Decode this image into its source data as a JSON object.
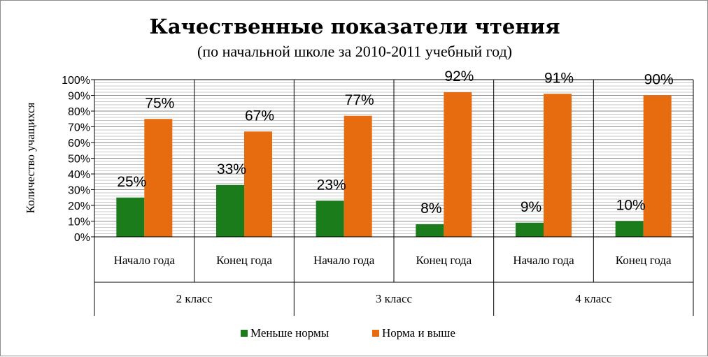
{
  "chart_data": {
    "type": "bar",
    "title": "Качественные показатели чтения",
    "subtitle": "(по начальной школе за 2010-2011 учебный год)",
    "ylabel": "Количество учащихся",
    "ylim": [
      0,
      100
    ],
    "ytick_labels": [
      "0%",
      "10%",
      "20%",
      "30%",
      "40%",
      "50%",
      "60%",
      "70%",
      "80%",
      "90%",
      "100%"
    ],
    "groups": [
      "2 класс",
      "3 класс",
      "4 класс"
    ],
    "categories": [
      "Начало года",
      "Конец года",
      "Начало года",
      "Конец года",
      "Начало года",
      "Конец года"
    ],
    "series": [
      {
        "name": "Меньше нормы",
        "color": "#1b7c1b",
        "values": [
          25,
          33,
          23,
          8,
          9,
          10
        ],
        "labels": [
          "25%",
          "33%",
          "23%",
          "8%",
          "9%",
          "10%"
        ]
      },
      {
        "name": "Норма и выше",
        "color": "#e66c0f",
        "values": [
          75,
          67,
          77,
          92,
          91,
          90
        ],
        "labels": [
          "75%",
          "67%",
          "77%",
          "92%",
          "91%",
          "90%"
        ]
      }
    ],
    "grid": true,
    "legend": "bottom"
  }
}
